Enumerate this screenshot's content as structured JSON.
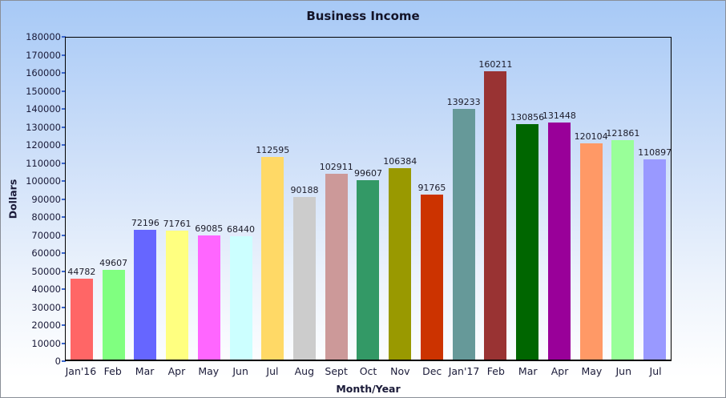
{
  "title": "Business Income",
  "chart_data": {
    "type": "bar",
    "title": "Business Income",
    "xlabel": "Month/Year",
    "ylabel": "Dollars",
    "ylim": [
      0,
      180000
    ],
    "ytick_step": 10000,
    "grid": false,
    "legend": false,
    "categories": [
      "Jan'16",
      "Feb",
      "Mar",
      "Apr",
      "May",
      "Jun",
      "Jul",
      "Aug",
      "Sept",
      "Oct",
      "Nov",
      "Dec",
      "Jan'17",
      "Feb",
      "Mar",
      "Apr",
      "May",
      "Jun",
      "Jul"
    ],
    "values": [
      44782,
      49607,
      72196,
      71761,
      69085,
      68440,
      112595,
      90188,
      102911,
      99607,
      106384,
      91765,
      139233,
      160211,
      130856,
      131448,
      120104,
      121861,
      110897
    ],
    "bar_colors": [
      "#ff6666",
      "#80ff80",
      "#6666ff",
      "#ffff80",
      "#ff66ff",
      "#ccffff",
      "#ffd966",
      "#cccccc",
      "#cc9999",
      "#339966",
      "#999900",
      "#cc3300",
      "#669999",
      "#993333",
      "#006600",
      "#990099",
      "#ff9966",
      "#99ff99",
      "#9999ff"
    ]
  },
  "colors": {
    "background_top": "#a7c9f6",
    "background_bottom": "#ffffff",
    "axis_line": "#000000",
    "tick_mark": "#3a66cc",
    "text": "#1a1a38"
  }
}
